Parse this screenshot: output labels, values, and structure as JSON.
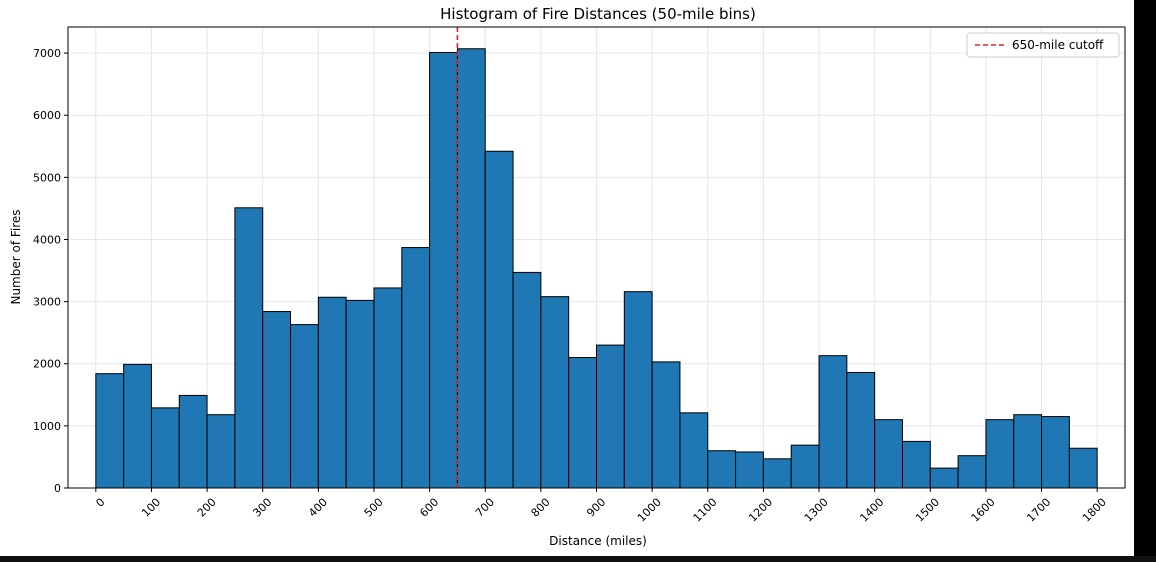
{
  "chart_data": {
    "type": "bar",
    "title": "Histogram of Fire Distances (50-mile bins)",
    "xlabel": "Distance (miles)",
    "ylabel": "Number of Fires",
    "bin_width": 50,
    "bin_starts": [
      0,
      50,
      100,
      150,
      200,
      250,
      300,
      350,
      400,
      450,
      500,
      550,
      600,
      650,
      700,
      750,
      800,
      850,
      900,
      950,
      1000,
      1050,
      1100,
      1150,
      1200,
      1250,
      1300,
      1350,
      1400,
      1450,
      1500,
      1550,
      1600,
      1650,
      1700,
      1750
    ],
    "values": [
      1840,
      1990,
      1290,
      1490,
      1180,
      4510,
      2840,
      2630,
      3070,
      3020,
      3220,
      3870,
      7010,
      7070,
      5420,
      3470,
      3080,
      2100,
      2300,
      3160,
      2030,
      1210,
      600,
      580,
      470,
      690,
      2130,
      1860,
      1100,
      750,
      320,
      520,
      1100,
      1180,
      1150,
      640
    ],
    "xlim": [
      -50,
      1850
    ],
    "ylim": [
      0,
      7420
    ],
    "x_ticks": [
      0,
      100,
      200,
      300,
      400,
      500,
      600,
      700,
      800,
      900,
      1000,
      1100,
      1200,
      1300,
      1400,
      1500,
      1600,
      1700,
      1800
    ],
    "x_tick_labels": [
      "0",
      "100",
      "200",
      "300",
      "400",
      "500",
      "600",
      "700",
      "800",
      "900",
      "1000",
      "1100",
      "1200",
      "1300",
      "1400",
      "1500",
      "1600",
      "1700",
      "1800"
    ],
    "y_ticks": [
      0,
      1000,
      2000,
      3000,
      4000,
      5000,
      6000,
      7000
    ],
    "y_tick_labels": [
      "0",
      "1000",
      "2000",
      "3000",
      "4000",
      "5000",
      "6000",
      "7000"
    ],
    "x_tick_rotation_deg": 45,
    "grid": true,
    "reference_line": {
      "x": 650,
      "label": "650-mile cutoff",
      "color": "#d62728",
      "style": "dashed"
    },
    "legend": {
      "position": "top-right",
      "entries": [
        "650-mile cutoff"
      ]
    },
    "colors": {
      "bar_fill": "#1f77b4",
      "bar_edge": "#000000",
      "cutoff_line": "#d62728",
      "grid": "#e6e6e6"
    }
  }
}
